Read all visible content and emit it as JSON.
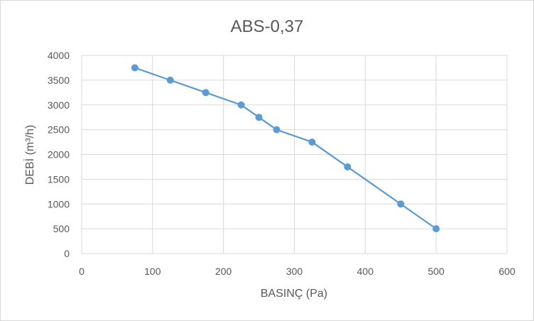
{
  "chart_data": {
    "type": "scatter",
    "title": "ABS-0,37",
    "xlabel": "BASINÇ (Pa)",
    "ylabel": "DEBİ (m³/h)",
    "xlim": [
      0,
      600
    ],
    "ylim": [
      0,
      4000
    ],
    "x_ticks": [
      0,
      100,
      200,
      300,
      400,
      500,
      600
    ],
    "y_ticks": [
      0,
      500,
      1000,
      1500,
      2000,
      2500,
      3000,
      3500,
      4000
    ],
    "grid": true,
    "legend": "none",
    "series": [
      {
        "color": "#5b9bd5",
        "points": [
          {
            "x": 75,
            "y": 3750
          },
          {
            "x": 125,
            "y": 3500
          },
          {
            "x": 175,
            "y": 3250
          },
          {
            "x": 225,
            "y": 3000
          },
          {
            "x": 250,
            "y": 2750
          },
          {
            "x": 275,
            "y": 2500
          },
          {
            "x": 325,
            "y": 2250
          },
          {
            "x": 375,
            "y": 1750
          },
          {
            "x": 450,
            "y": 1000
          },
          {
            "x": 500,
            "y": 500
          }
        ]
      }
    ]
  }
}
